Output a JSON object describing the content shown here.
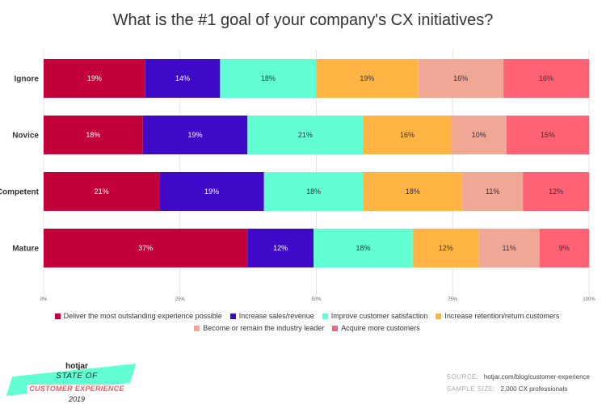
{
  "chart_data": {
    "type": "bar",
    "orientation": "horizontal",
    "stacked": true,
    "title": "What is the #1 goal of your company's CX initiatives?",
    "categories": [
      "Ignore",
      "Novice",
      "Competent",
      "Mature"
    ],
    "series": [
      {
        "name": "Deliver the most outstanding experience possible",
        "color": "#c2003a",
        "text_color": "#ffffff",
        "values": [
          19,
          18,
          21,
          37
        ]
      },
      {
        "name": "Increase sales/revenue",
        "color": "#3e0ac8",
        "text_color": "#ffffff",
        "values": [
          14,
          19,
          19,
          12
        ]
      },
      {
        "name": "Improve customer satisfaction",
        "color": "#62ffd3",
        "text_color": "#333333",
        "values": [
          18,
          21,
          18,
          18
        ]
      },
      {
        "name": "Increase retention/return customers",
        "color": "#ffb443",
        "text_color": "#333333",
        "values": [
          19,
          16,
          18,
          12
        ]
      },
      {
        "name": "Become or remain the industry leader",
        "color": "#f0a796",
        "text_color": "#333333",
        "values": [
          16,
          10,
          11,
          11
        ]
      },
      {
        "name": "Acquire more customers",
        "color": "#fe6274",
        "text_color": "#333333",
        "values": [
          16,
          15,
          12,
          9
        ]
      }
    ],
    "xlim": [
      0,
      100
    ],
    "x_ticks": [
      "0%",
      "25%",
      "50%",
      "75%",
      "100%"
    ],
    "legend_position": "bottom",
    "grid": true
  },
  "branding": {
    "brand": "hotjar",
    "line1": "STATE OF",
    "line2": "CUSTOMER EXPERIENCE",
    "year": "2019"
  },
  "source": {
    "source_label": "SOURCE:",
    "source_value": "hotjar.com/blog/customer-experience",
    "sample_label": "SAMPLE SIZE:",
    "sample_value": "2,000 CX professionals"
  }
}
